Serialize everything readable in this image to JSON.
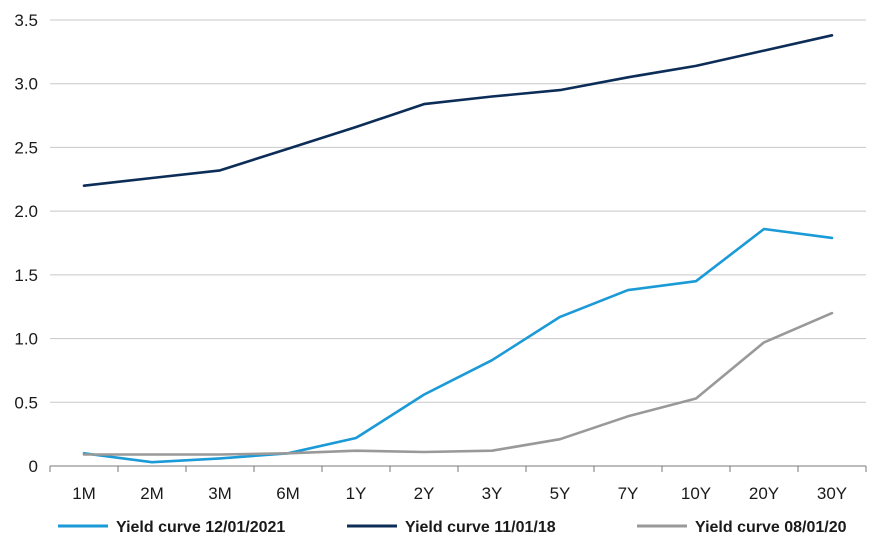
{
  "chart_data": {
    "type": "line",
    "categories": [
      "1M",
      "2M",
      "3M",
      "6M",
      "1Y",
      "2Y",
      "3Y",
      "5Y",
      "7Y",
      "10Y",
      "20Y",
      "30Y"
    ],
    "ylim": [
      0,
      3.5
    ],
    "yticks": [
      "0",
      "0.5",
      "1.0",
      "1.5",
      "2.0",
      "2.5",
      "3.0",
      "3.5"
    ],
    "grid": "horizontal",
    "legend_position": "bottom",
    "series": [
      {
        "name": "Yield curve 12/01/2021",
        "color": "#1a9ad6",
        "values": [
          0.1,
          0.03,
          0.06,
          0.1,
          0.22,
          0.56,
          0.83,
          1.17,
          1.38,
          1.45,
          1.86,
          1.79
        ]
      },
      {
        "name": "Yield curve 11/01/18",
        "color": "#0c2d57",
        "values": [
          2.2,
          2.26,
          2.32,
          2.49,
          2.66,
          2.84,
          2.9,
          2.95,
          3.05,
          3.14,
          3.26,
          3.38
        ]
      },
      {
        "name": "Yield curve 08/01/20",
        "color": "#999999",
        "values": [
          0.09,
          0.09,
          0.09,
          0.1,
          0.12,
          0.11,
          0.12,
          0.21,
          0.39,
          0.53,
          0.97,
          1.2
        ]
      }
    ]
  }
}
